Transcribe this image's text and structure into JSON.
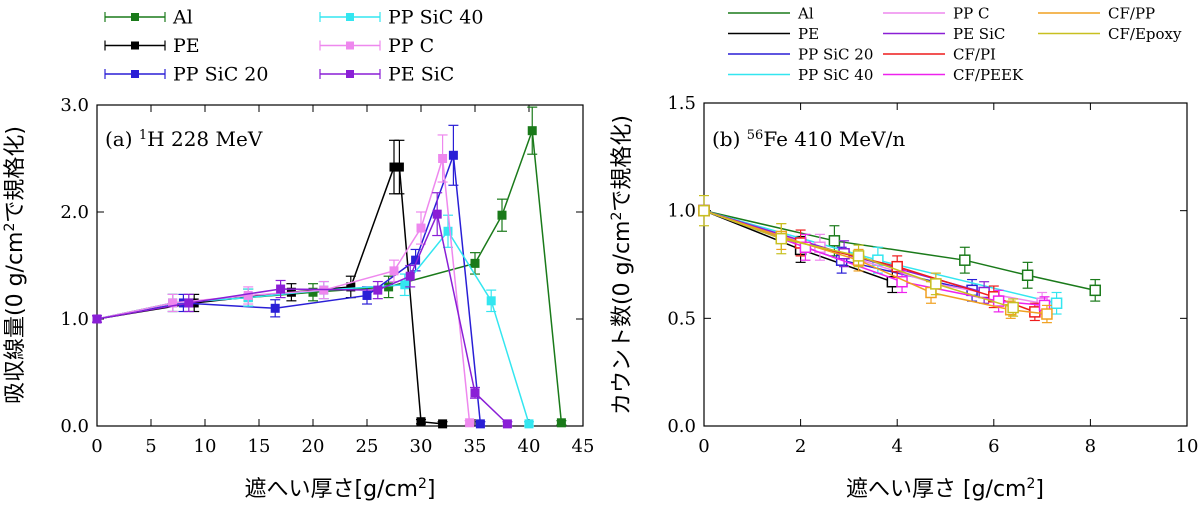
{
  "chart_data": [
    {
      "id": "a",
      "type": "line",
      "annotation": {
        "prefix": "(a) ",
        "sup": "1",
        "text": "H 228 MeV"
      },
      "xlabel": "遮へい厚さ[g/cm",
      "xlabel_sup": "2",
      "xlabel_end": "]",
      "ylabel": "吸収線量(0 g/cm",
      "ylabel_sup": "2",
      "ylabel_end": "で規格化)",
      "xlim": [
        0,
        45
      ],
      "ylim": [
        0,
        3.0
      ],
      "xticks": [
        0,
        5,
        10,
        15,
        20,
        25,
        30,
        35,
        40,
        45
      ],
      "yticks": [
        0.0,
        1.0,
        2.0,
        3.0
      ],
      "ytick_labels": [
        "0.0",
        "1.0",
        "2.0",
        "3.0"
      ],
      "marker": "filled-square",
      "legend": {
        "placement": "top-outside",
        "columns": 2
      },
      "series": [
        {
          "name": "Al",
          "color": "#1a7a1a",
          "x": [
            0,
            7,
            14,
            20,
            27,
            35,
            37.5,
            40.3,
            43
          ],
          "y": [
            1.0,
            1.15,
            1.2,
            1.25,
            1.3,
            1.52,
            1.97,
            2.76,
            0.03
          ],
          "err": [
            0.03,
            0.08,
            0.08,
            0.08,
            0.1,
            0.1,
            0.15,
            0.22,
            0.02
          ]
        },
        {
          "name": "PE",
          "color": "#000000",
          "x": [
            0,
            9,
            18,
            23.5,
            27.5,
            28,
            30,
            32
          ],
          "y": [
            1.0,
            1.15,
            1.25,
            1.3,
            2.42,
            2.42,
            0.04,
            0.02
          ],
          "err": [
            0.03,
            0.08,
            0.08,
            0.1,
            0.25,
            0.25,
            0.02,
            0.02
          ]
        },
        {
          "name": "PP SiC 20",
          "color": "#2a1fd6",
          "x": [
            0,
            8,
            16.5,
            25,
            29.5,
            33,
            35.5
          ],
          "y": [
            1.0,
            1.15,
            1.1,
            1.22,
            1.55,
            2.53,
            0.02
          ],
          "err": [
            0.03,
            0.08,
            0.08,
            0.08,
            0.1,
            0.28,
            0.02
          ]
        },
        {
          "name": "PP SiC 40",
          "color": "#33e6f0",
          "x": [
            0,
            7,
            14,
            21,
            28.5,
            32.5,
            36.5,
            40
          ],
          "y": [
            1.0,
            1.15,
            1.2,
            1.27,
            1.32,
            1.82,
            1.17,
            0.02
          ],
          "err": [
            0.03,
            0.08,
            0.08,
            0.08,
            0.1,
            0.15,
            0.1,
            0.02
          ]
        },
        {
          "name": "PP C",
          "color": "#ee88ee",
          "x": [
            0,
            7,
            14,
            21,
            27.5,
            30,
            32,
            34.5
          ],
          "y": [
            1.0,
            1.15,
            1.22,
            1.27,
            1.45,
            1.85,
            2.5,
            0.03
          ],
          "err": [
            0.03,
            0.08,
            0.08,
            0.08,
            0.1,
            0.15,
            0.22,
            0.02
          ]
        },
        {
          "name": "PE SiC",
          "color": "#8a1fd6",
          "x": [
            0,
            8.5,
            17,
            26,
            29,
            31.5,
            35,
            38
          ],
          "y": [
            1.0,
            1.15,
            1.28,
            1.27,
            1.4,
            1.98,
            0.31,
            0.02
          ],
          "err": [
            0.03,
            0.08,
            0.08,
            0.08,
            0.1,
            0.2,
            0.05,
            0.02
          ]
        }
      ]
    },
    {
      "id": "b",
      "type": "line",
      "annotation": {
        "prefix": "(b) ",
        "sup": "56",
        "text": "Fe 410 MeV/n"
      },
      "xlabel": "遮へい厚さ [g/cm",
      "xlabel_sup": "2",
      "xlabel_end": "]",
      "ylabel": "カウント数(0 g/cm",
      "ylabel_sup": "2",
      "ylabel_end": "で規格化)",
      "xlim": [
        0,
        10
      ],
      "ylim": [
        0,
        1.5
      ],
      "xticks": [
        0,
        2,
        4,
        6,
        8,
        10
      ],
      "yticks": [
        0.0,
        0.5,
        1.0,
        1.5
      ],
      "ytick_labels": [
        "0.0",
        "0.5",
        "1.0",
        "1.5"
      ],
      "marker": "open-square",
      "legend": {
        "placement": "top-outside",
        "columns": 3
      },
      "series": [
        {
          "name": "Al",
          "color": "#1a7a1a",
          "x": [
            0,
            2.7,
            5.4,
            6.7,
            8.1
          ],
          "y": [
            1.0,
            0.86,
            0.77,
            0.7,
            0.63
          ],
          "err": [
            0.02,
            0.07,
            0.06,
            0.06,
            0.05
          ]
        },
        {
          "name": "PE",
          "color": "#000000",
          "x": [
            0,
            2.0,
            3.9
          ],
          "y": [
            1.0,
            0.82,
            0.67
          ],
          "err": [
            0.02,
            0.06,
            0.05
          ]
        },
        {
          "name": "PP SiC 20",
          "color": "#2a1fd6",
          "x": [
            0,
            2.85,
            5.55
          ],
          "y": [
            1.0,
            0.77,
            0.63
          ],
          "err": [
            0.02,
            0.06,
            0.05
          ]
        },
        {
          "name": "PP SiC 40",
          "color": "#33e6f0",
          "x": [
            0,
            3.6,
            7.3
          ],
          "y": [
            1.0,
            0.77,
            0.57
          ],
          "err": [
            0.02,
            0.06,
            0.05
          ]
        },
        {
          "name": "PP C",
          "color": "#ee88ee",
          "x": [
            0,
            2.4,
            4.8,
            7.0
          ],
          "y": [
            1.0,
            0.83,
            0.66,
            0.57
          ],
          "err": [
            0.02,
            0.06,
            0.05,
            0.05
          ]
        },
        {
          "name": "PE SiC",
          "color": "#8a1fd6",
          "x": [
            0,
            2.9,
            5.8
          ],
          "y": [
            1.0,
            0.8,
            0.62
          ],
          "err": [
            0.02,
            0.06,
            0.05
          ]
        },
        {
          "name": "CF/PI",
          "color": "#ee1c1c",
          "x": [
            0,
            2.0,
            4.0,
            6.0,
            6.85
          ],
          "y": [
            1.0,
            0.85,
            0.74,
            0.6,
            0.53
          ],
          "err": [
            0.02,
            0.06,
            0.05,
            0.05,
            0.04
          ]
        },
        {
          "name": "CF/PEEK",
          "color": "#ee22ee",
          "x": [
            0,
            2.1,
            4.1,
            6.1,
            7.05
          ],
          "y": [
            1.0,
            0.83,
            0.67,
            0.58,
            0.56
          ],
          "err": [
            0.02,
            0.06,
            0.05,
            0.05,
            0.04
          ]
        },
        {
          "name": "CF/PP",
          "color": "#f0a020",
          "x": [
            0,
            1.6,
            3.2,
            4.7,
            6.35,
            7.1
          ],
          "y": [
            1.0,
            0.88,
            0.77,
            0.62,
            0.54,
            0.52
          ],
          "err": [
            0.02,
            0.06,
            0.05,
            0.05,
            0.04,
            0.04
          ]
        },
        {
          "name": "CF/Epoxy",
          "color": "#c8c020",
          "x": [
            0,
            1.6,
            3.2,
            4.8,
            6.4
          ],
          "y": [
            1.0,
            0.87,
            0.79,
            0.66,
            0.55
          ],
          "err": [
            0.07,
            0.07,
            0.05,
            0.05,
            0.04
          ]
        }
      ]
    }
  ]
}
